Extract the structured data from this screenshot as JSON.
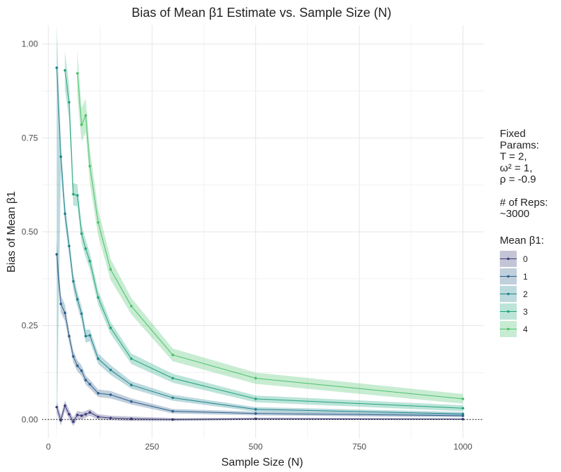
{
  "chart_data": {
    "type": "line",
    "title": "Bias of Mean β1 Estimate vs. Sample Size (N)",
    "xlabel": "Sample Size (N)",
    "ylabel": "Bias of Mean β1",
    "xlim": [
      -15,
      1050
    ],
    "ylim": [
      -0.05,
      1.05
    ],
    "x_ticks": [
      0,
      250,
      500,
      750,
      1000
    ],
    "x_tick_labels": [
      "0",
      "250",
      "500",
      "750",
      "1000"
    ],
    "y_ticks": [
      0,
      0.25,
      0.5,
      0.75,
      1.0
    ],
    "y_tick_labels": [
      "0.00",
      "0.25",
      "0.50",
      "0.75",
      "1.00"
    ],
    "grid": true,
    "reference_line": {
      "y": 0,
      "style": "dotted"
    },
    "legend_position": "right",
    "legend_note_lines": [
      "Fixed",
      "Params:",
      "T = 2,",
      "ω² = 1,",
      "ρ = -0.9",
      "",
      "# of Reps:",
      "~3000"
    ],
    "legend_title": "Mean β1:",
    "series": [
      {
        "name": "0",
        "color": "#3b3b7c",
        "x": [
          20,
          30,
          40,
          50,
          60,
          70,
          80,
          90,
          100,
          120,
          150,
          200,
          300,
          500,
          1000
        ],
        "y": [
          0.033,
          -0.002,
          0.037,
          0.014,
          -0.006,
          0.012,
          0.01,
          0.014,
          0.019,
          0.007,
          0.004,
          0.002,
          0.0,
          0.002,
          0.001
        ],
        "lower": [
          0.018,
          -0.016,
          0.024,
          0.002,
          -0.017,
          0.001,
          0.0,
          0.005,
          0.01,
          0.0,
          -0.002,
          -0.004,
          -0.004,
          -0.001,
          -0.001
        ],
        "upper": [
          0.048,
          0.012,
          0.05,
          0.026,
          0.005,
          0.023,
          0.02,
          0.023,
          0.028,
          0.014,
          0.01,
          0.008,
          0.004,
          0.005,
          0.003
        ]
      },
      {
        "name": "1",
        "color": "#2d5f8c",
        "x": [
          20,
          30,
          40,
          50,
          60,
          70,
          80,
          90,
          100,
          120,
          150,
          200,
          300,
          500,
          1000
        ],
        "y": [
          0.44,
          0.308,
          0.284,
          0.222,
          0.168,
          0.143,
          0.13,
          0.105,
          0.094,
          0.07,
          0.066,
          0.048,
          0.022,
          0.016,
          0.01
        ],
        "lower": [
          0.4,
          0.285,
          0.262,
          0.205,
          0.152,
          0.128,
          0.116,
          0.093,
          0.082,
          0.06,
          0.056,
          0.04,
          0.016,
          0.011,
          0.006
        ],
        "upper": [
          0.48,
          0.331,
          0.306,
          0.239,
          0.184,
          0.158,
          0.144,
          0.117,
          0.106,
          0.08,
          0.076,
          0.056,
          0.028,
          0.021,
          0.014
        ]
      },
      {
        "name": "2",
        "color": "#20838d",
        "x": [
          20,
          30,
          40,
          50,
          60,
          70,
          80,
          90,
          100,
          120,
          150,
          200,
          300,
          500,
          1000
        ],
        "y": [
          0.937,
          0.7,
          0.548,
          0.462,
          0.368,
          0.32,
          0.282,
          0.222,
          0.224,
          0.162,
          0.132,
          0.092,
          0.058,
          0.027,
          0.015
        ],
        "lower": [
          -0.06,
          0.66,
          0.52,
          0.438,
          0.346,
          0.3,
          0.263,
          0.205,
          0.208,
          0.148,
          0.119,
          0.082,
          0.05,
          0.021,
          0.01
        ],
        "upper": [
          1.05,
          0.74,
          0.576,
          0.486,
          0.39,
          0.34,
          0.301,
          0.239,
          0.24,
          0.176,
          0.145,
          0.102,
          0.066,
          0.033,
          0.02
        ]
      },
      {
        "name": "3",
        "color": "#22a47f",
        "x": [
          40,
          50,
          60,
          70,
          80,
          90,
          100,
          120,
          150,
          200,
          300,
          500,
          1000
        ],
        "y": [
          0.93,
          0.845,
          0.6,
          0.597,
          0.495,
          0.455,
          0.422,
          0.325,
          0.244,
          0.162,
          0.11,
          0.055,
          0.03
        ],
        "lower": [
          0.88,
          0.8,
          0.57,
          0.568,
          0.47,
          0.432,
          0.4,
          0.306,
          0.228,
          0.148,
          0.098,
          0.046,
          0.022
        ],
        "upper": [
          0.98,
          0.89,
          0.63,
          0.626,
          0.52,
          0.478,
          0.444,
          0.344,
          0.26,
          0.176,
          0.122,
          0.064,
          0.038
        ]
      },
      {
        "name": "4",
        "color": "#49c16a",
        "x": [
          70,
          80,
          90,
          100,
          120,
          150,
          200,
          300,
          500,
          1000
        ],
        "y": [
          0.922,
          0.785,
          0.81,
          0.675,
          0.525,
          0.4,
          0.302,
          0.172,
          0.11,
          0.055
        ],
        "lower": [
          0.86,
          0.74,
          0.765,
          0.63,
          0.49,
          0.372,
          0.28,
          0.155,
          0.095,
          0.042
        ],
        "upper": [
          0.984,
          0.83,
          0.855,
          0.72,
          0.56,
          0.428,
          0.324,
          0.189,
          0.125,
          0.068
        ]
      }
    ]
  }
}
